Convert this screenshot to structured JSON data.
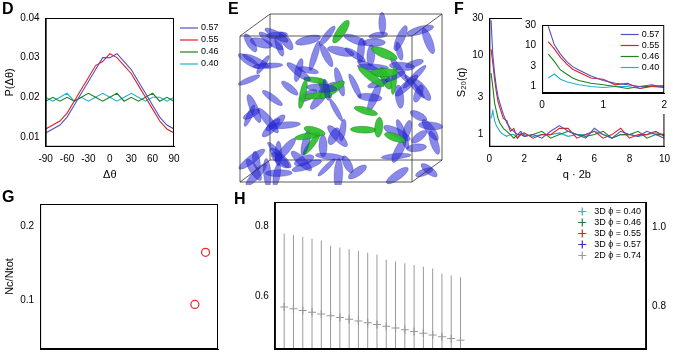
{
  "chart_data": [
    {
      "type": "line",
      "title": "D",
      "x": [
        -90,
        -80,
        -70,
        -60,
        -50,
        -40,
        -30,
        -20,
        -10,
        0,
        10,
        20,
        30,
        40,
        50,
        60,
        70,
        80,
        90
      ],
      "series": [
        {
          "name": "0.57",
          "color": "#5050c8",
          "values": [
            0.011,
            0.012,
            0.013,
            0.015,
            0.018,
            0.021,
            0.024,
            0.027,
            0.03,
            0.03,
            0.031,
            0.029,
            0.027,
            0.024,
            0.021,
            0.018,
            0.015,
            0.013,
            0.012
          ]
        },
        {
          "name": "0.55",
          "color": "#e02020",
          "values": [
            0.012,
            0.013,
            0.014,
            0.016,
            0.019,
            0.022,
            0.025,
            0.028,
            0.029,
            0.031,
            0.03,
            0.028,
            0.026,
            0.023,
            0.02,
            0.017,
            0.014,
            0.012,
            0.011
          ]
        },
        {
          "name": "0.46",
          "color": "#208020",
          "values": [
            0.019,
            0.02,
            0.019,
            0.02,
            0.019,
            0.02,
            0.021,
            0.02,
            0.019,
            0.02,
            0.021,
            0.019,
            0.02,
            0.019,
            0.02,
            0.021,
            0.019,
            0.02,
            0.019
          ]
        },
        {
          "name": "0.40",
          "color": "#20b0d0",
          "values": [
            0.02,
            0.019,
            0.02,
            0.021,
            0.019,
            0.02,
            0.019,
            0.02,
            0.021,
            0.02,
            0.019,
            0.02,
            0.021,
            0.02,
            0.019,
            0.02,
            0.02,
            0.019,
            0.02
          ]
        }
      ],
      "xlim": [
        -90,
        90
      ],
      "xticks": [
        -90,
        -60,
        -30,
        0,
        30,
        60,
        90
      ],
      "ylim": [
        0.0075,
        0.04
      ],
      "yticks": [
        0.01,
        0.02,
        0.03,
        0.04
      ],
      "xlabel": "Δθ",
      "ylabel": "P(Δθ)",
      "legend": "right"
    },
    {
      "type": "image",
      "title": "E"
    },
    {
      "type": "line",
      "title": "F",
      "log": "y",
      "x": [
        0.1,
        0.2,
        0.3,
        0.4,
        0.5,
        0.6,
        0.8,
        1.0,
        1.2,
        1.4,
        1.6,
        1.8,
        2.0,
        2.5,
        3,
        3.5,
        4,
        4.5,
        5,
        5.5,
        6,
        6.5,
        7,
        7.5,
        8,
        8.5,
        9,
        9.5,
        10
      ],
      "series": [
        {
          "name": "0.57",
          "color": "#5050c8",
          "values": [
            28,
            10,
            6,
            4,
            3,
            2.5,
            1.8,
            1.4,
            1.2,
            1.1,
            1.0,
            1.1,
            0.95,
            1.0,
            0.9,
            1.1,
            1.3,
            1.1,
            1.0,
            0.9,
            1.2,
            1.0,
            0.9,
            1.1,
            1.0,
            0.95,
            1.1,
            1.0,
            0.9
          ]
        },
        {
          "name": "0.55",
          "color": "#e02020",
          "values": [
            12,
            8,
            5,
            3.5,
            2.6,
            2.2,
            1.6,
            1.5,
            1.1,
            1.2,
            0.9,
            1.0,
            1.05,
            0.9,
            1.0,
            1.0,
            1.2,
            1.2,
            0.9,
            1.0,
            1.1,
            0.9,
            1.0,
            1.2,
            0.9,
            1.0,
            1.0,
            1.1,
            0.95
          ]
        },
        {
          "name": "0.46",
          "color": "#208020",
          "values": [
            6,
            4,
            2.5,
            2,
            1.6,
            1.4,
            1.2,
            1.1,
            1.0,
            0.9,
            1.0,
            1.0,
            0.95,
            1.0,
            1.1,
            0.9,
            1.0,
            1.1,
            1.0,
            0.95,
            1.0,
            1.1,
            0.9,
            1.0,
            1.0,
            1.1,
            0.9,
            1.0,
            1.0
          ]
        },
        {
          "name": "0.40",
          "color": "#20b0d0",
          "values": [
            1.6,
            2,
            1.5,
            1.3,
            1.2,
            1.1,
            1.0,
            0.95,
            1.0,
            1.0,
            0.9,
            1.05,
            1.0,
            0.95,
            1.0,
            1.0,
            1.05,
            0.95,
            1.0,
            1.0,
            1.1,
            1.0,
            0.9,
            1.0,
            1.0,
            0.95,
            1.0,
            1.05,
            1.0
          ]
        }
      ],
      "xlim": [
        0,
        10
      ],
      "xticks": [
        0,
        2,
        4,
        6,
        8,
        10
      ],
      "ylim": [
        0.7,
        30
      ],
      "yticks": [
        1,
        3,
        10,
        30
      ],
      "xlabel": "q · 2b",
      "ylabel": "S₂₀(q)"
    },
    {
      "type": "line",
      "log": "y",
      "x": [
        0.1,
        0.2,
        0.3,
        0.4,
        0.5,
        0.6,
        0.8,
        1.0,
        1.2,
        1.4,
        1.6,
        1.8,
        2.0,
        2.5,
        3,
        3.5,
        4,
        4.5,
        5,
        5.5,
        6,
        6.5,
        7,
        7.5,
        8,
        8.5,
        9,
        9.5,
        10
      ],
      "series": [
        {
          "name": "0.57",
          "color": "#5050c8",
          "values": [
            28,
            10,
            6,
            4,
            3,
            2.5,
            1.8,
            1.4,
            1.2,
            1.1,
            1.0,
            1.1,
            0.95,
            1.0,
            0.9,
            1.1,
            1.3,
            1.1,
            1.0,
            0.9,
            1.2,
            1.0,
            0.9,
            1.1,
            1.0,
            0.95,
            1.1,
            1.0,
            0.9
          ]
        },
        {
          "name": "0.55",
          "color": "#e02020",
          "values": [
            12,
            8,
            5,
            3.5,
            2.6,
            2.2,
            1.6,
            1.5,
            1.1,
            1.2,
            0.9,
            1.0,
            1.05,
            0.9,
            1.0,
            1.0,
            1.2,
            1.2,
            0.9,
            1.0,
            1.1,
            0.9,
            1.0,
            1.2,
            0.9,
            1.0,
            1.0,
            1.1,
            0.95
          ]
        },
        {
          "name": "0.46",
          "color": "#208020",
          "values": [
            6,
            4,
            2.5,
            2,
            1.6,
            1.4,
            1.2,
            1.1,
            1.0,
            0.9,
            1.0,
            1.0,
            0.95,
            1.0,
            1.1,
            0.9,
            1.0,
            1.1,
            1.0,
            0.95,
            1.0,
            1.1,
            0.9,
            1.0,
            1.0,
            1.1,
            0.9,
            1.0,
            1.0
          ]
        },
        {
          "name": "0.40",
          "color": "#20b0d0",
          "values": [
            1.6,
            2,
            1.5,
            1.3,
            1.2,
            1.1,
            1.0,
            0.95,
            1.0,
            1.0,
            0.9,
            1.05,
            1.0,
            0.95,
            1.0,
            1.0,
            1.05,
            0.95,
            1.0,
            1.0,
            1.1,
            1.0,
            0.9,
            1.0,
            1.0,
            0.95,
            1.0,
            1.05,
            1.0
          ]
        }
      ],
      "xlim": [
        0,
        2
      ],
      "xticks": [
        0,
        1,
        2
      ],
      "ylim": [
        0.7,
        30
      ],
      "yticks": [
        1,
        3,
        10,
        30
      ],
      "legend": "top-right"
    },
    {
      "type": "scatter",
      "title": "G",
      "x": [
        0.87,
        0.93
      ],
      "values": [
        0.095,
        0.165
      ],
      "color": "#e8262a",
      "marker": "circle",
      "xlim": [
        0,
        1
      ],
      "ylim": [
        0.035,
        0.23
      ],
      "yticks": [
        0.1,
        0.2
      ],
      "ylabel": "Nc/Ntot",
      "tick_labels": "y"
    },
    {
      "type": "scatter",
      "title": "H",
      "marker": "cross",
      "x": [
        0.02,
        0.04,
        0.06,
        0.08,
        0.1,
        0.12,
        0.14,
        0.16,
        0.18,
        0.2,
        0.22,
        0.24,
        0.26,
        0.28,
        0.3,
        0.32,
        0.34,
        0.36,
        0.38,
        0.4
      ],
      "series": [
        {
          "name": "3D ϕ = 0.40",
          "color": "#20b8d8",
          "values": [
            null,
            null,
            null,
            null,
            null,
            null,
            null,
            null,
            null,
            null,
            null,
            null,
            null,
            null,
            null,
            null,
            null,
            null,
            null,
            null
          ]
        },
        {
          "name": "3D ϕ = 0.46",
          "color": "#207a3a",
          "values": [
            null,
            null,
            null,
            null,
            null,
            null,
            null,
            null,
            null,
            null,
            null,
            null,
            null,
            null,
            null,
            null,
            null,
            null,
            null,
            null
          ]
        },
        {
          "name": "3D ϕ = 0.55",
          "color": "#e02020",
          "values": [
            null,
            null,
            null,
            null,
            null,
            null,
            null,
            null,
            null,
            null,
            null,
            null,
            null,
            null,
            null,
            null,
            null,
            null,
            null,
            null
          ]
        },
        {
          "name": "3D ϕ = 0.57",
          "color": "#3030c8",
          "values": [
            null,
            null,
            null,
            null,
            null,
            null,
            null,
            null,
            null,
            null,
            null,
            null,
            null,
            null,
            null,
            null,
            null,
            null,
            null,
            null
          ]
        },
        {
          "name": "2D ϕ = 0.74",
          "color": "#999999",
          "values": [
            0.57,
            0.565,
            0.56,
            0.555,
            0.55,
            0.545,
            0.54,
            0.535,
            0.53,
            0.525,
            0.52,
            0.515,
            0.51,
            0.505,
            0.5,
            0.495,
            0.49,
            0.485,
            0.48,
            0.475
          ],
          "errors": [
            0.21,
            0.21,
            0.21,
            0.21,
            0.21,
            0.2,
            0.2,
            0.2,
            0.2,
            0.2,
            0.2,
            0.19,
            0.19,
            0.19,
            0.19,
            0.19,
            0.19,
            0.18,
            0.18,
            0.18
          ]
        }
      ],
      "xlim": [
        0,
        0.8
      ],
      "ylim": [
        0.45,
        0.87
      ],
      "yticks": [
        0.6,
        0.8
      ],
      "y2lim": [
        0.69,
        1.065
      ],
      "y2ticks": [
        0.8,
        {
          "value": 1,
          "label": "1.0"
        }
      ],
      "legend": "top-right",
      "tick_labels": "y"
    }
  ]
}
